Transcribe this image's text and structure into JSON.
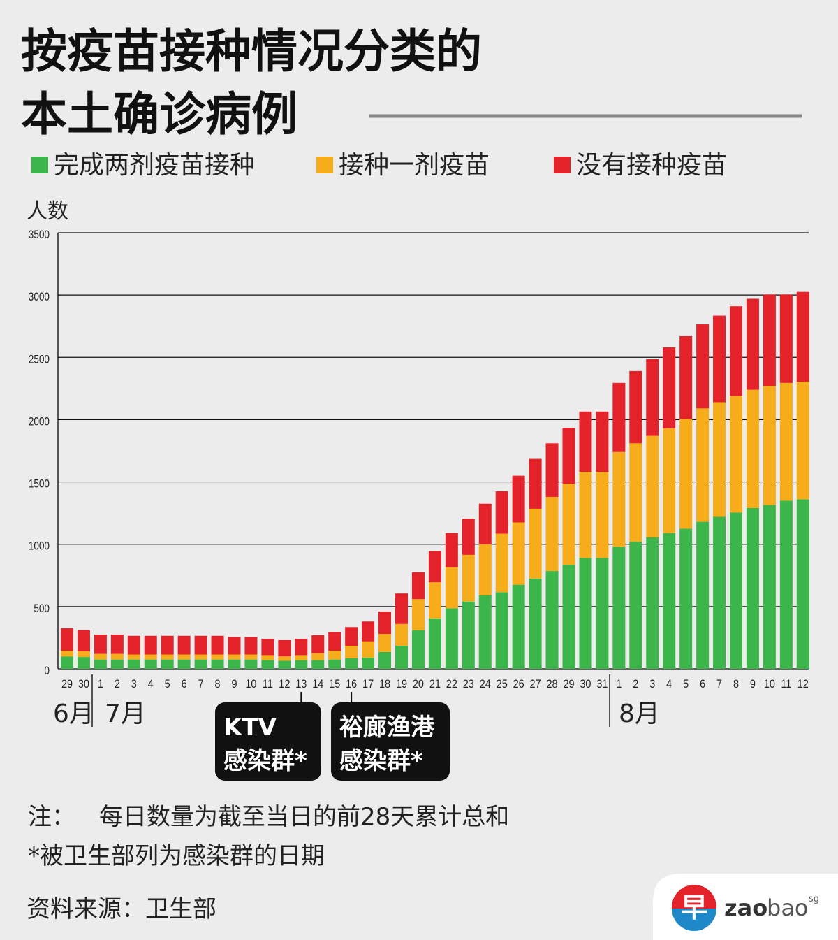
{
  "chart_data": {
    "type": "stacked_bar",
    "title_lines": [
      "按疫苗接种情况分类的",
      "本土确诊病例"
    ],
    "ylabel": "人数",
    "categories": [
      "29",
      "30",
      "1",
      "2",
      "3",
      "4",
      "5",
      "6",
      "7",
      "8",
      "9",
      "10",
      "11",
      "12",
      "13",
      "14",
      "15",
      "16",
      "17",
      "18",
      "19",
      "20",
      "21",
      "22",
      "23",
      "24",
      "25",
      "26",
      "27",
      "28",
      "29",
      "30",
      "31",
      "1",
      "2",
      "3",
      "4",
      "5",
      "6",
      "7",
      "8",
      "9",
      "10",
      "11",
      "12"
    ],
    "months": [
      "6月",
      "7月",
      "8月"
    ],
    "series": [
      {
        "name": "完成两剂疫苗接种",
        "color": "#3cb54a",
        "values": [
          100,
          95,
          75,
          75,
          75,
          75,
          75,
          75,
          75,
          75,
          75,
          75,
          70,
          65,
          70,
          70,
          75,
          85,
          90,
          135,
          185,
          310,
          405,
          485,
          540,
          590,
          615,
          675,
          725,
          785,
          835,
          890,
          890,
          980,
          1020,
          1055,
          1090,
          1125,
          1180,
          1220,
          1255,
          1290,
          1315,
          1350,
          1360
        ]
      },
      {
        "name": "接种一剂疫苗",
        "color": "#f7ac1b",
        "values": [
          45,
          45,
          45,
          45,
          40,
          40,
          40,
          40,
          40,
          40,
          40,
          40,
          40,
          35,
          40,
          55,
          70,
          100,
          130,
          145,
          175,
          250,
          290,
          330,
          375,
          410,
          470,
          500,
          560,
          595,
          650,
          690,
          690,
          760,
          790,
          815,
          840,
          880,
          910,
          920,
          935,
          950,
          955,
          945,
          945
        ]
      },
      {
        "name": "没有接种疫苗",
        "color": "#e4222a",
        "values": [
          180,
          170,
          155,
          155,
          150,
          150,
          150,
          150,
          150,
          150,
          140,
          140,
          130,
          130,
          130,
          145,
          150,
          150,
          160,
          180,
          245,
          215,
          250,
          275,
          290,
          325,
          340,
          375,
          400,
          430,
          450,
          485,
          485,
          555,
          580,
          615,
          650,
          665,
          675,
          695,
          720,
          730,
          735,
          710,
          720
        ]
      }
    ],
    "ylim": [
      0,
      3500
    ],
    "yticks": [
      0,
      500,
      1000,
      1500,
      2000,
      2500,
      3000,
      3500
    ],
    "grid": true,
    "annotations": [
      [
        "KTV",
        "感染群*"
      ],
      [
        "裕廊渔港",
        "感染群*"
      ]
    ],
    "notes": {
      "label": "注：",
      "text": "每日数量为截至当日的前28天累计总和",
      "star": "*被卫生部列为感染群的日期"
    },
    "source": "资料来源：卫生部",
    "logo": {
      "mark": "早",
      "zao": "zao",
      "bao": "bao",
      "sg": "sg"
    }
  }
}
